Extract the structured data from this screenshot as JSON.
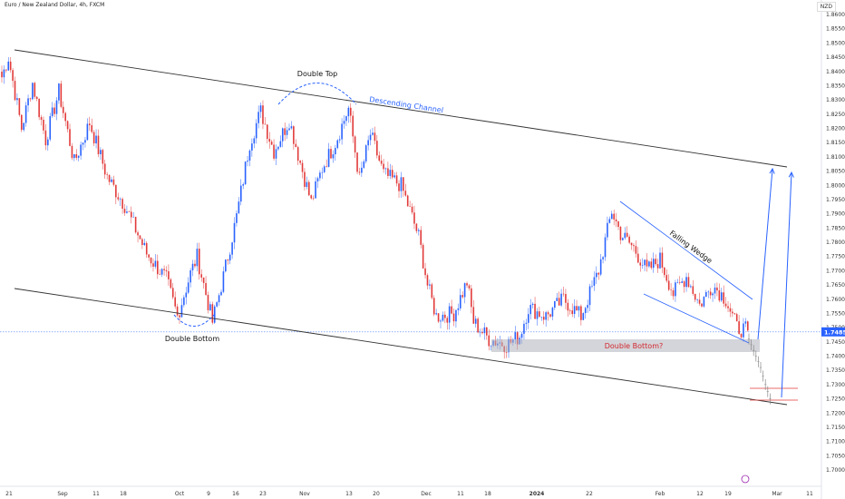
{
  "header": {
    "title": "Euro / New Zealand Dollar, 4h, FXCM",
    "currency": "NZD"
  },
  "chart_data": {
    "type": "candlestick",
    "title": "Euro / New Zealand Dollar, 4h, FXCM",
    "ylim": [
      1.6975,
      1.8625
    ],
    "y_ticks": [
      "1.86000",
      "1.85500",
      "1.85000",
      "1.84500",
      "1.84000",
      "1.83500",
      "1.83000",
      "1.82500",
      "1.82000",
      "1.81500",
      "1.81000",
      "1.80500",
      "1.80000",
      "1.79500",
      "1.79000",
      "1.78500",
      "1.78000",
      "1.77500",
      "1.77000",
      "1.76500",
      "1.76000",
      "1.75500",
      "1.75000",
      "1.74500",
      "1.74000",
      "1.73500",
      "1.73000",
      "1.72500",
      "1.72000",
      "1.71500",
      "1.71000",
      "1.70500",
      "1.70000"
    ],
    "x_ticks": [
      "21",
      "Sep",
      "11",
      "18",
      "Oct",
      "9",
      "16",
      "23",
      "Nov",
      "13",
      "20",
      "Dec",
      "11",
      "18",
      "2024",
      "22",
      "Feb",
      "12",
      "19",
      "Mar",
      "11"
    ],
    "current_price": {
      "label": "1.74851",
      "value": 1.74851,
      "color": "#2962ff"
    },
    "bull_color": "#2962ff",
    "bear_color": "#e23a3a",
    "key_points": [
      {
        "t": 0,
        "p": 1.838
      },
      {
        "t": 3,
        "p": 1.845
      },
      {
        "t": 9,
        "p": 1.82
      },
      {
        "t": 14,
        "p": 1.836
      },
      {
        "t": 20,
        "p": 1.816
      },
      {
        "t": 26,
        "p": 1.833
      },
      {
        "t": 33,
        "p": 1.808
      },
      {
        "t": 40,
        "p": 1.822
      },
      {
        "t": 48,
        "p": 1.803
      },
      {
        "t": 56,
        "p": 1.793
      },
      {
        "t": 66,
        "p": 1.776
      },
      {
        "t": 75,
        "p": 1.767
      },
      {
        "t": 80,
        "p": 1.754
      },
      {
        "t": 86,
        "p": 1.769
      },
      {
        "t": 89,
        "p": 1.775
      },
      {
        "t": 96,
        "p": 1.752
      },
      {
        "t": 101,
        "p": 1.768
      },
      {
        "t": 107,
        "p": 1.789
      },
      {
        "t": 113,
        "p": 1.815
      },
      {
        "t": 118,
        "p": 1.826
      },
      {
        "t": 124,
        "p": 1.812
      },
      {
        "t": 131,
        "p": 1.823
      },
      {
        "t": 136,
        "p": 1.808
      },
      {
        "t": 141,
        "p": 1.794
      },
      {
        "t": 146,
        "p": 1.806
      },
      {
        "t": 152,
        "p": 1.815
      },
      {
        "t": 158,
        "p": 1.827
      },
      {
        "t": 163,
        "p": 1.802
      },
      {
        "t": 168,
        "p": 1.818
      },
      {
        "t": 174,
        "p": 1.804
      },
      {
        "t": 182,
        "p": 1.8
      },
      {
        "t": 190,
        "p": 1.782
      },
      {
        "t": 194,
        "p": 1.765
      },
      {
        "t": 198,
        "p": 1.754
      },
      {
        "t": 206,
        "p": 1.755
      },
      {
        "t": 212,
        "p": 1.766
      },
      {
        "t": 215,
        "p": 1.752
      },
      {
        "t": 222,
        "p": 1.746
      },
      {
        "t": 230,
        "p": 1.744
      },
      {
        "t": 236,
        "p": 1.747
      },
      {
        "t": 240,
        "p": 1.757
      },
      {
        "t": 248,
        "p": 1.754
      },
      {
        "t": 256,
        "p": 1.76
      },
      {
        "t": 264,
        "p": 1.754
      },
      {
        "t": 272,
        "p": 1.77
      },
      {
        "t": 278,
        "p": 1.791
      },
      {
        "t": 282,
        "p": 1.783
      },
      {
        "t": 288,
        "p": 1.778
      },
      {
        "t": 294,
        "p": 1.77
      },
      {
        "t": 300,
        "p": 1.774
      },
      {
        "t": 306,
        "p": 1.762
      },
      {
        "t": 312,
        "p": 1.768
      },
      {
        "t": 318,
        "p": 1.758
      },
      {
        "t": 324,
        "p": 1.765
      },
      {
        "t": 330,
        "p": 1.76
      },
      {
        "t": 335,
        "p": 1.75
      },
      {
        "t": 340,
        "p": 1.749
      }
    ],
    "projection": [
      {
        "t": 341,
        "p": 1.746
      },
      {
        "t": 342,
        "p": 1.744
      },
      {
        "t": 343,
        "p": 1.742
      },
      {
        "t": 344,
        "p": 1.74
      },
      {
        "t": 345,
        "p": 1.738
      },
      {
        "t": 346,
        "p": 1.736
      },
      {
        "t": 347,
        "p": 1.733
      },
      {
        "t": 348,
        "p": 1.73
      },
      {
        "t": 349,
        "p": 1.7275
      },
      {
        "t": 350,
        "p": 1.725
      }
    ],
    "annotations": {
      "double_top": "Double Top",
      "double_bottom": "Double Bottom",
      "double_bottom_q": "Double Bottom?",
      "descending_channel": "Descending Channel",
      "falling_wedge": "Falling Wedge"
    }
  }
}
